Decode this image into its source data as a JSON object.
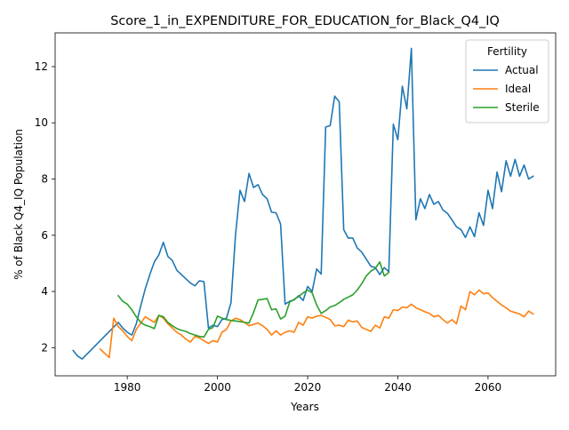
{
  "chart_data": {
    "type": "line",
    "title": "Score_1_in_EXPENDITURE_FOR_EDUCATION_for_Black_Q4_IQ",
    "xlabel": "Years",
    "ylabel": "% of Black Q4_IQ Population",
    "xlim": [
      1964,
      2075
    ],
    "ylim": [
      1.0,
      13.2
    ],
    "x_ticks": [
      1980,
      2000,
      2020,
      2040,
      2060
    ],
    "y_ticks": [
      2,
      4,
      6,
      8,
      10,
      12
    ],
    "grid": false,
    "legend": {
      "title": "Fertility",
      "position": "top-right"
    },
    "series": [
      {
        "name": "Actual",
        "color": "#1f77b4",
        "points": [
          [
            1968,
            1.9
          ],
          [
            1969,
            1.7
          ],
          [
            1970,
            1.6
          ],
          [
            1978,
            2.9
          ],
          [
            1979,
            2.7
          ],
          [
            1980,
            2.55
          ],
          [
            1981,
            2.45
          ],
          [
            1982,
            2.85
          ],
          [
            1983,
            3.5
          ],
          [
            1984,
            4.1
          ],
          [
            1985,
            4.6
          ],
          [
            1986,
            5.05
          ],
          [
            1987,
            5.3
          ],
          [
            1988,
            5.75
          ],
          [
            1989,
            5.25
          ],
          [
            1990,
            5.1
          ],
          [
            1991,
            4.75
          ],
          [
            1992,
            4.6
          ],
          [
            1993,
            4.45
          ],
          [
            1994,
            4.3
          ],
          [
            1995,
            4.2
          ],
          [
            1996,
            4.38
          ],
          [
            1997,
            4.35
          ],
          [
            1998,
            2.7
          ],
          [
            1999,
            2.8
          ],
          [
            2000,
            2.75
          ],
          [
            2001,
            3.0
          ],
          [
            2002,
            3.05
          ],
          [
            2003,
            3.6
          ],
          [
            2004,
            6.0
          ],
          [
            2005,
            7.6
          ],
          [
            2006,
            7.2
          ],
          [
            2007,
            8.2
          ],
          [
            2008,
            7.7
          ],
          [
            2009,
            7.8
          ],
          [
            2010,
            7.45
          ],
          [
            2011,
            7.3
          ],
          [
            2012,
            6.82
          ],
          [
            2013,
            6.8
          ],
          [
            2014,
            6.4
          ],
          [
            2015,
            3.55
          ],
          [
            2016,
            3.65
          ],
          [
            2017,
            3.7
          ],
          [
            2018,
            3.85
          ],
          [
            2019,
            3.68
          ],
          [
            2020,
            4.18
          ],
          [
            2021,
            4.0
          ],
          [
            2022,
            4.8
          ],
          [
            2023,
            4.62
          ],
          [
            2024,
            9.85
          ],
          [
            2025,
            9.9
          ],
          [
            2026,
            10.95
          ],
          [
            2027,
            10.75
          ],
          [
            2028,
            6.2
          ],
          [
            2029,
            5.9
          ],
          [
            2030,
            5.9
          ],
          [
            2031,
            5.55
          ],
          [
            2032,
            5.4
          ],
          [
            2033,
            5.15
          ],
          [
            2034,
            4.9
          ],
          [
            2035,
            4.85
          ],
          [
            2036,
            4.6
          ],
          [
            2037,
            4.85
          ],
          [
            2038,
            4.7
          ],
          [
            2039,
            9.95
          ],
          [
            2040,
            9.4
          ],
          [
            2041,
            11.3
          ],
          [
            2042,
            10.5
          ],
          [
            2043,
            12.65
          ],
          [
            2044,
            6.55
          ],
          [
            2045,
            7.3
          ],
          [
            2046,
            6.95
          ],
          [
            2047,
            7.45
          ],
          [
            2048,
            7.1
          ],
          [
            2049,
            7.2
          ],
          [
            2050,
            6.9
          ],
          [
            2051,
            6.78
          ],
          [
            2052,
            6.55
          ],
          [
            2053,
            6.3
          ],
          [
            2054,
            6.2
          ],
          [
            2055,
            5.92
          ],
          [
            2056,
            6.3
          ],
          [
            2057,
            5.95
          ],
          [
            2058,
            6.8
          ],
          [
            2059,
            6.35
          ],
          [
            2060,
            7.6
          ],
          [
            2061,
            6.95
          ],
          [
            2062,
            8.25
          ],
          [
            2063,
            7.55
          ],
          [
            2064,
            8.65
          ],
          [
            2065,
            8.1
          ],
          [
            2066,
            8.7
          ],
          [
            2067,
            8.1
          ],
          [
            2068,
            8.5
          ],
          [
            2069,
            8.0
          ],
          [
            2070,
            8.1
          ]
        ]
      },
      {
        "name": "Ideal",
        "color": "#ff7f0e",
        "points": [
          [
            1974,
            1.95
          ],
          [
            1975,
            1.8
          ],
          [
            1976,
            1.65
          ],
          [
            1977,
            3.05
          ],
          [
            1978,
            2.75
          ],
          [
            1979,
            2.6
          ],
          [
            1980,
            2.4
          ],
          [
            1981,
            2.25
          ],
          [
            1982,
            2.65
          ],
          [
            1983,
            2.88
          ],
          [
            1984,
            3.1
          ],
          [
            1985,
            3.0
          ],
          [
            1986,
            2.9
          ],
          [
            1987,
            3.15
          ],
          [
            1988,
            3.05
          ],
          [
            1989,
            2.85
          ],
          [
            1990,
            2.7
          ],
          [
            1991,
            2.55
          ],
          [
            1992,
            2.45
          ],
          [
            1993,
            2.3
          ],
          [
            1994,
            2.2
          ],
          [
            1995,
            2.4
          ],
          [
            1996,
            2.35
          ],
          [
            1997,
            2.25
          ],
          [
            1998,
            2.15
          ],
          [
            1999,
            2.25
          ],
          [
            2000,
            2.2
          ],
          [
            2001,
            2.55
          ],
          [
            2002,
            2.65
          ],
          [
            2003,
            2.95
          ],
          [
            2004,
            3.05
          ],
          [
            2005,
            3.0
          ],
          [
            2006,
            2.9
          ],
          [
            2007,
            2.78
          ],
          [
            2008,
            2.83
          ],
          [
            2009,
            2.88
          ],
          [
            2010,
            2.78
          ],
          [
            2011,
            2.65
          ],
          [
            2012,
            2.45
          ],
          [
            2013,
            2.6
          ],
          [
            2014,
            2.45
          ],
          [
            2015,
            2.55
          ],
          [
            2016,
            2.6
          ],
          [
            2017,
            2.55
          ],
          [
            2018,
            2.9
          ],
          [
            2019,
            2.8
          ],
          [
            2020,
            3.1
          ],
          [
            2021,
            3.05
          ],
          [
            2022,
            3.12
          ],
          [
            2023,
            3.15
          ],
          [
            2024,
            3.08
          ],
          [
            2025,
            3.0
          ],
          [
            2026,
            2.78
          ],
          [
            2027,
            2.8
          ],
          [
            2028,
            2.75
          ],
          [
            2029,
            2.98
          ],
          [
            2030,
            2.92
          ],
          [
            2031,
            2.95
          ],
          [
            2032,
            2.72
          ],
          [
            2033,
            2.65
          ],
          [
            2034,
            2.58
          ],
          [
            2035,
            2.8
          ],
          [
            2036,
            2.7
          ],
          [
            2037,
            3.1
          ],
          [
            2038,
            3.05
          ],
          [
            2039,
            3.35
          ],
          [
            2040,
            3.32
          ],
          [
            2041,
            3.45
          ],
          [
            2042,
            3.42
          ],
          [
            2043,
            3.55
          ],
          [
            2044,
            3.42
          ],
          [
            2045,
            3.35
          ],
          [
            2046,
            3.28
          ],
          [
            2047,
            3.22
          ],
          [
            2048,
            3.1
          ],
          [
            2049,
            3.15
          ],
          [
            2050,
            3.0
          ],
          [
            2051,
            2.88
          ],
          [
            2052,
            3.0
          ],
          [
            2053,
            2.85
          ],
          [
            2054,
            3.48
          ],
          [
            2055,
            3.35
          ],
          [
            2056,
            4.0
          ],
          [
            2057,
            3.88
          ],
          [
            2058,
            4.05
          ],
          [
            2059,
            3.92
          ],
          [
            2060,
            3.95
          ],
          [
            2061,
            3.78
          ],
          [
            2062,
            3.65
          ],
          [
            2063,
            3.52
          ],
          [
            2064,
            3.42
          ],
          [
            2065,
            3.3
          ],
          [
            2066,
            3.25
          ],
          [
            2067,
            3.2
          ],
          [
            2068,
            3.1
          ],
          [
            2069,
            3.3
          ],
          [
            2070,
            3.2
          ]
        ]
      },
      {
        "name": "Sterile",
        "color": "#2ca02c",
        "points": [
          [
            1978,
            3.85
          ],
          [
            1979,
            3.65
          ],
          [
            1980,
            3.55
          ],
          [
            1981,
            3.35
          ],
          [
            1982,
            3.1
          ],
          [
            1983,
            2.9
          ],
          [
            1984,
            2.8
          ],
          [
            1985,
            2.75
          ],
          [
            1986,
            2.68
          ],
          [
            1987,
            3.15
          ],
          [
            1988,
            3.1
          ],
          [
            1989,
            2.9
          ],
          [
            1990,
            2.78
          ],
          [
            1991,
            2.68
          ],
          [
            1992,
            2.62
          ],
          [
            1993,
            2.58
          ],
          [
            1994,
            2.5
          ],
          [
            1995,
            2.45
          ],
          [
            1996,
            2.4
          ],
          [
            1997,
            2.38
          ],
          [
            1998,
            2.65
          ],
          [
            1999,
            2.72
          ],
          [
            2000,
            3.12
          ],
          [
            2001,
            3.05
          ],
          [
            2002,
            3.0
          ],
          [
            2003,
            2.97
          ],
          [
            2004,
            2.95
          ],
          [
            2005,
            2.93
          ],
          [
            2006,
            2.9
          ],
          [
            2007,
            2.88
          ],
          [
            2008,
            3.25
          ],
          [
            2009,
            3.7
          ],
          [
            2010,
            3.72
          ],
          [
            2011,
            3.75
          ],
          [
            2012,
            3.35
          ],
          [
            2013,
            3.38
          ],
          [
            2014,
            3.02
          ],
          [
            2015,
            3.12
          ],
          [
            2016,
            3.62
          ],
          [
            2017,
            3.72
          ],
          [
            2018,
            3.82
          ],
          [
            2019,
            3.95
          ],
          [
            2020,
            4.05
          ],
          [
            2021,
            3.95
          ],
          [
            2022,
            3.52
          ],
          [
            2023,
            3.22
          ],
          [
            2024,
            3.32
          ],
          [
            2025,
            3.45
          ],
          [
            2026,
            3.5
          ],
          [
            2027,
            3.6
          ],
          [
            2028,
            3.72
          ],
          [
            2029,
            3.8
          ],
          [
            2030,
            3.88
          ],
          [
            2031,
            4.05
          ],
          [
            2032,
            4.28
          ],
          [
            2033,
            4.55
          ],
          [
            2034,
            4.72
          ],
          [
            2035,
            4.82
          ],
          [
            2036,
            5.05
          ],
          [
            2037,
            4.55
          ],
          [
            2038,
            4.68
          ]
        ]
      }
    ]
  }
}
